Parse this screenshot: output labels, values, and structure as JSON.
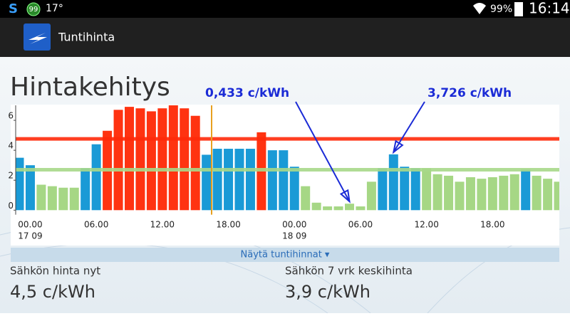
{
  "status_bar": {
    "notification_badge": "99",
    "temperature": "17°",
    "battery": "99%",
    "time": "16:14"
  },
  "app_bar": {
    "title": "Tuntihinta"
  },
  "heading": "Hintakehitys",
  "chart_data": {
    "type": "bar",
    "categories": [
      null,
      "00.00",
      null,
      null,
      null,
      null,
      null,
      "06.00",
      null,
      null,
      null,
      null,
      null,
      "12.00",
      null,
      null,
      null,
      null,
      null,
      "18.00",
      null,
      null,
      null,
      null,
      null,
      "00.00",
      null,
      null,
      null,
      null,
      null,
      "06.00",
      null,
      null,
      null,
      null,
      null,
      "12.00",
      null,
      null,
      null,
      null,
      null,
      "18.00",
      null,
      null,
      null,
      null,
      null,
      null
    ],
    "dates": [
      null,
      "17 09",
      null,
      null,
      null,
      null,
      null,
      null,
      null,
      null,
      null,
      null,
      null,
      null,
      null,
      null,
      null,
      null,
      null,
      null,
      null,
      null,
      null,
      null,
      null,
      "18 09",
      null,
      null,
      null,
      null,
      null,
      null,
      null,
      null,
      null,
      null,
      null,
      null,
      null,
      null,
      null,
      null,
      null,
      null,
      null,
      null,
      null,
      null,
      null,
      null
    ],
    "values": [
      3.5,
      3.0,
      1.7,
      1.6,
      1.5,
      1.5,
      2.8,
      4.4,
      5.3,
      6.7,
      6.9,
      6.8,
      6.6,
      6.8,
      7.0,
      6.8,
      6.3,
      3.7,
      4.1,
      4.1,
      4.1,
      4.1,
      5.2,
      4.0,
      4.0,
      2.9,
      1.6,
      0.5,
      0.25,
      0.25,
      0.433,
      0.25,
      1.9,
      2.8,
      3.726,
      2.9,
      2.8,
      2.8,
      2.4,
      2.3,
      1.9,
      2.2,
      2.1,
      2.2,
      2.3,
      2.4,
      2.7,
      2.3,
      2.1,
      1.9
    ],
    "colors": [
      "#1a9ad6",
      "#1a9ad6",
      "#a6d785",
      "#a6d785",
      "#a6d785",
      "#a6d785",
      "#1a9ad6",
      "#1a9ad6",
      "#ff3311",
      "#ff3311",
      "#ff3311",
      "#ff3311",
      "#ff3311",
      "#ff3311",
      "#ff3311",
      "#ff3311",
      "#ff3311",
      "#1a9ad6",
      "#1a9ad6",
      "#1a9ad6",
      "#1a9ad6",
      "#1a9ad6",
      "#ff3311",
      "#1a9ad6",
      "#1a9ad6",
      "#1a9ad6",
      "#a6d785",
      "#a6d785",
      "#a6d785",
      "#a6d785",
      "#a6d785",
      "#a6d785",
      "#a6d785",
      "#1a9ad6",
      "#1a9ad6",
      "#1a9ad6",
      "#1a9ad6",
      "#a6d785",
      "#a6d785",
      "#a6d785",
      "#a6d785",
      "#a6d785",
      "#a6d785",
      "#a6d785",
      "#a6d785",
      "#a6d785",
      "#1a9ad6",
      "#a6d785",
      "#a6d785",
      "#a6d785"
    ],
    "ylim": [
      -0.3,
      7.0
    ],
    "yticks": [
      0,
      2,
      4,
      6
    ],
    "reference_lines": [
      {
        "value": 4.76,
        "color": "#ff2a0a"
      },
      {
        "value": 2.7,
        "color": "#a8d98a"
      }
    ],
    "annotations": [
      {
        "text": "0,433 c/kWh",
        "index": 30
      },
      {
        "text": "3,726 c/kWh",
        "index": 34
      }
    ]
  },
  "toggle": "Näytä tuntihinnat ▾",
  "summary": [
    {
      "label": "Sähkön hinta nyt",
      "value": "4,5 c/kWh"
    },
    {
      "label": "Sähkön 7 vrk keskihinta",
      "value": "3,9 c/kWh"
    }
  ]
}
